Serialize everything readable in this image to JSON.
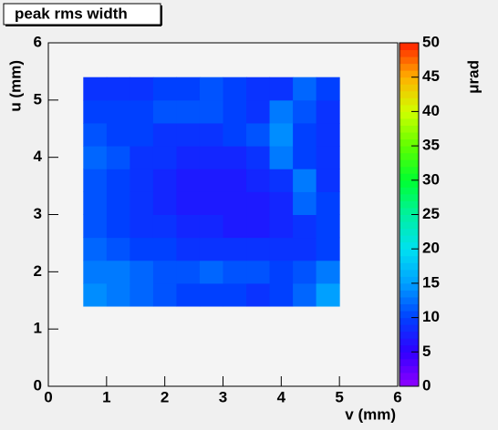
{
  "chart_data": {
    "type": "heatmap",
    "title": "peak rms width",
    "x_label": "v (mm)",
    "y_label": "u (mm)",
    "z_label": "μrad",
    "xlim": [
      0,
      6
    ],
    "ylim": [
      0,
      6
    ],
    "zlim": [
      0,
      50
    ],
    "xticks": [
      0,
      1,
      2,
      3,
      4,
      5,
      6
    ],
    "yticks": [
      0,
      1,
      2,
      3,
      4,
      5,
      6
    ],
    "zticks": [
      0,
      5,
      10,
      15,
      20,
      25,
      30,
      35,
      40,
      45,
      50
    ],
    "colorscale": [
      "#9000ff",
      "#3000ff",
      "#0040ff",
      "#00a0ff",
      "#00e0f0",
      "#00f0a0",
      "#00ff30",
      "#60ff00",
      "#d0ff00",
      "#ffb000",
      "#ff2000"
    ],
    "x_bins": [
      0.6,
      1.0,
      1.4,
      1.8,
      2.2,
      2.6,
      3.0,
      3.4,
      3.8,
      4.2,
      4.6,
      5.0
    ],
    "y_bins": [
      1.4,
      1.8,
      2.2,
      2.6,
      3.0,
      3.4,
      3.8,
      4.2,
      4.6,
      5.0,
      5.4
    ],
    "z": [
      [
        14,
        13,
        12,
        11,
        10,
        10,
        10,
        9,
        10,
        12,
        15
      ],
      [
        13,
        13,
        12,
        11,
        11,
        12,
        11,
        11,
        10,
        11,
        13
      ],
      [
        12,
        11,
        10,
        10,
        9,
        9,
        9,
        9,
        9,
        9,
        10
      ],
      [
        11,
        10,
        9,
        9,
        8,
        8,
        7,
        7,
        8,
        9,
        10
      ],
      [
        11,
        10,
        9,
        8,
        7,
        7,
        7,
        7,
        8,
        12,
        10
      ],
      [
        11,
        10,
        9,
        8,
        7,
        7,
        7,
        8,
        9,
        13,
        9
      ],
      [
        12,
        11,
        9,
        9,
        8,
        8,
        8,
        9,
        13,
        10,
        9
      ],
      [
        11,
        10,
        10,
        9,
        9,
        9,
        10,
        11,
        14,
        10,
        9
      ],
      [
        10,
        10,
        10,
        11,
        11,
        11,
        10,
        9,
        13,
        11,
        9
      ],
      [
        9,
        9,
        9,
        10,
        10,
        11,
        10,
        9,
        9,
        12,
        10
      ]
    ]
  }
}
